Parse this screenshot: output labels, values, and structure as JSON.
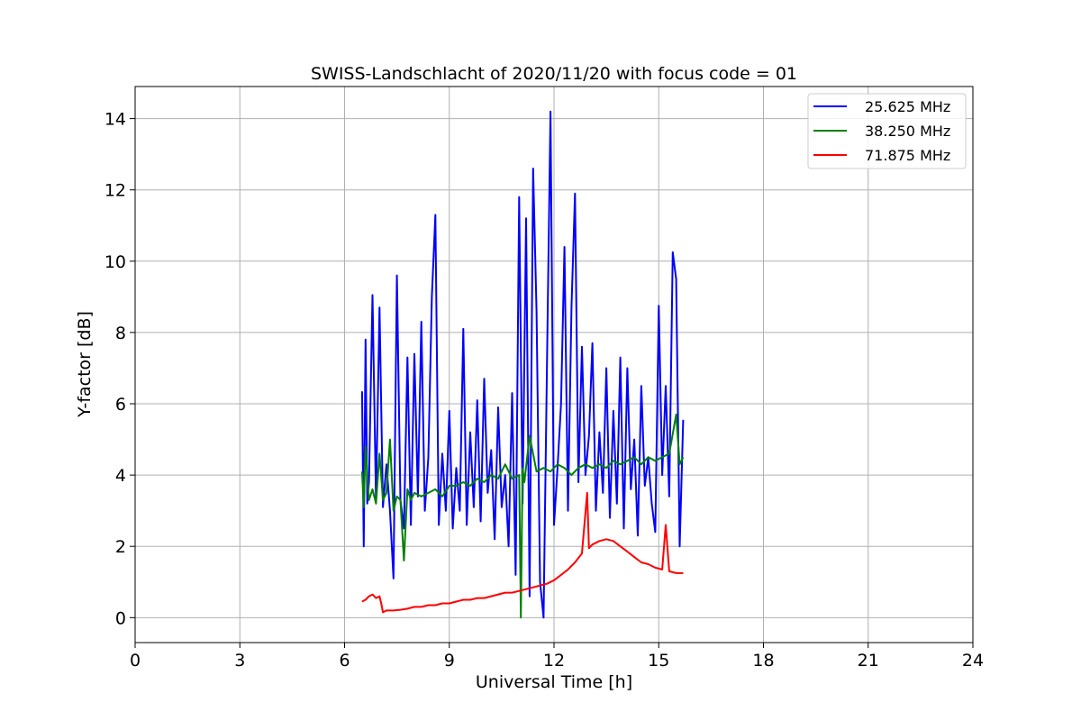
{
  "chart_data": {
    "type": "line",
    "title": "SWISS-Landschlacht of 2020/11/20 with focus code = 01",
    "xlabel": "Universal Time [h]",
    "ylabel": "Y-factor [dB]",
    "xlim": [
      0,
      24
    ],
    "ylim": [
      -0.7,
      14.9
    ],
    "xticks": [
      0,
      3,
      6,
      9,
      12,
      15,
      18,
      21,
      24
    ],
    "yticks": [
      0,
      2,
      4,
      6,
      8,
      10,
      12,
      14
    ],
    "grid": true,
    "legend_position": "top-right",
    "series": [
      {
        "name": "25.625 MHz",
        "color": "#0000ff",
        "x": [
          6.5,
          6.55,
          6.6,
          6.65,
          6.7,
          6.8,
          6.9,
          7.0,
          7.1,
          7.2,
          7.3,
          7.4,
          7.5,
          7.6,
          7.7,
          7.8,
          7.9,
          8.0,
          8.1,
          8.2,
          8.3,
          8.4,
          8.5,
          8.6,
          8.7,
          8.8,
          8.9,
          9.0,
          9.1,
          9.2,
          9.3,
          9.4,
          9.5,
          9.6,
          9.7,
          9.8,
          9.9,
          10.0,
          10.1,
          10.2,
          10.3,
          10.4,
          10.5,
          10.6,
          10.7,
          10.8,
          10.9,
          11.0,
          11.1,
          11.2,
          11.3,
          11.4,
          11.5,
          11.6,
          11.7,
          11.8,
          11.9,
          12.0,
          12.1,
          12.2,
          12.3,
          12.4,
          12.5,
          12.6,
          12.7,
          12.8,
          12.9,
          13.0,
          13.1,
          13.2,
          13.3,
          13.4,
          13.5,
          13.6,
          13.7,
          13.8,
          13.9,
          14.0,
          14.1,
          14.2,
          14.3,
          14.4,
          14.5,
          14.6,
          14.7,
          14.8,
          14.9,
          15.0,
          15.1,
          15.2,
          15.3,
          15.4,
          15.5,
          15.6,
          15.7
        ],
        "y": [
          6.35,
          2.0,
          7.8,
          3.2,
          3.8,
          9.05,
          3.3,
          8.7,
          3.1,
          4.3,
          3.0,
          1.1,
          9.6,
          3.3,
          2.5,
          7.3,
          2.6,
          7.4,
          3.4,
          8.3,
          3.0,
          4.5,
          9.0,
          11.3,
          2.6,
          4.6,
          3.0,
          5.8,
          2.5,
          4.2,
          3.0,
          8.1,
          2.6,
          5.2,
          3.1,
          6.1,
          2.7,
          6.7,
          3.5,
          4.7,
          2.2,
          5.9,
          3.1,
          4.0,
          2.0,
          6.3,
          1.2,
          11.8,
          3.2,
          11.2,
          0.6,
          12.6,
          8.6,
          1.0,
          0.0,
          7.3,
          14.2,
          2.6,
          4.2,
          6.0,
          10.4,
          3.0,
          8.7,
          11.9,
          3.8,
          7.6,
          4.0,
          5.1,
          7.7,
          3.0,
          5.2,
          3.5,
          7.0,
          2.8,
          5.8,
          3.2,
          7.3,
          2.5,
          7.0,
          3.6,
          5.0,
          2.3,
          6.5,
          3.7,
          4.5,
          3.2,
          2.4,
          8.75,
          4.0,
          6.5,
          3.4,
          10.25,
          9.5,
          2.0,
          5.55
        ]
      },
      {
        "name": "38.250 MHz",
        "color": "#008000",
        "x": [
          6.5,
          6.55,
          6.6,
          6.7,
          6.8,
          6.9,
          7.0,
          7.1,
          7.2,
          7.3,
          7.4,
          7.5,
          7.6,
          7.7,
          7.8,
          7.9,
          8.0,
          8.2,
          8.4,
          8.6,
          8.8,
          9.0,
          9.2,
          9.4,
          9.6,
          9.8,
          10.0,
          10.2,
          10.4,
          10.6,
          10.8,
          11.0,
          11.05,
          11.1,
          11.15,
          11.3,
          11.5,
          11.7,
          11.9,
          12.1,
          12.3,
          12.5,
          12.7,
          12.9,
          13.1,
          13.3,
          13.5,
          13.7,
          13.9,
          14.1,
          14.3,
          14.5,
          14.7,
          14.9,
          15.1,
          15.3,
          15.5,
          15.6,
          15.7
        ],
        "y": [
          4.1,
          3.1,
          4.8,
          3.3,
          3.6,
          3.2,
          4.6,
          3.3,
          3.5,
          5.0,
          3.0,
          3.4,
          3.3,
          1.6,
          3.6,
          3.3,
          3.5,
          3.4,
          3.5,
          3.6,
          3.4,
          3.7,
          3.7,
          3.8,
          3.7,
          3.9,
          3.8,
          4.0,
          3.9,
          4.3,
          3.9,
          4.0,
          0.0,
          4.2,
          3.8,
          5.1,
          4.1,
          4.2,
          4.1,
          4.3,
          4.2,
          4.0,
          4.2,
          4.3,
          4.2,
          4.3,
          4.2,
          4.4,
          4.3,
          4.4,
          4.5,
          4.3,
          4.5,
          4.4,
          4.5,
          4.6,
          5.7,
          4.3,
          4.5
        ]
      },
      {
        "name": "71.875 MHz",
        "color": "#ff0000",
        "x": [
          6.5,
          6.6,
          6.7,
          6.8,
          6.9,
          7.0,
          7.05,
          7.1,
          7.2,
          7.4,
          7.6,
          7.8,
          8.0,
          8.2,
          8.4,
          8.6,
          8.8,
          9.0,
          9.2,
          9.4,
          9.6,
          9.8,
          10.0,
          10.2,
          10.4,
          10.6,
          10.8,
          11.0,
          11.2,
          11.4,
          11.6,
          11.8,
          12.0,
          12.2,
          12.4,
          12.6,
          12.8,
          12.95,
          13.0,
          13.1,
          13.3,
          13.5,
          13.7,
          13.9,
          14.1,
          14.3,
          14.5,
          14.7,
          14.9,
          15.1,
          15.2,
          15.3,
          15.5,
          15.7
        ],
        "y": [
          0.45,
          0.5,
          0.6,
          0.65,
          0.55,
          0.6,
          0.4,
          0.15,
          0.2,
          0.2,
          0.22,
          0.25,
          0.3,
          0.3,
          0.35,
          0.35,
          0.4,
          0.4,
          0.45,
          0.5,
          0.5,
          0.55,
          0.55,
          0.6,
          0.65,
          0.7,
          0.7,
          0.75,
          0.8,
          0.85,
          0.9,
          0.95,
          1.05,
          1.2,
          1.35,
          1.55,
          1.8,
          3.5,
          1.95,
          2.05,
          2.15,
          2.2,
          2.15,
          2.0,
          1.85,
          1.7,
          1.55,
          1.5,
          1.4,
          1.35,
          2.6,
          1.3,
          1.25,
          1.25
        ]
      }
    ]
  }
}
